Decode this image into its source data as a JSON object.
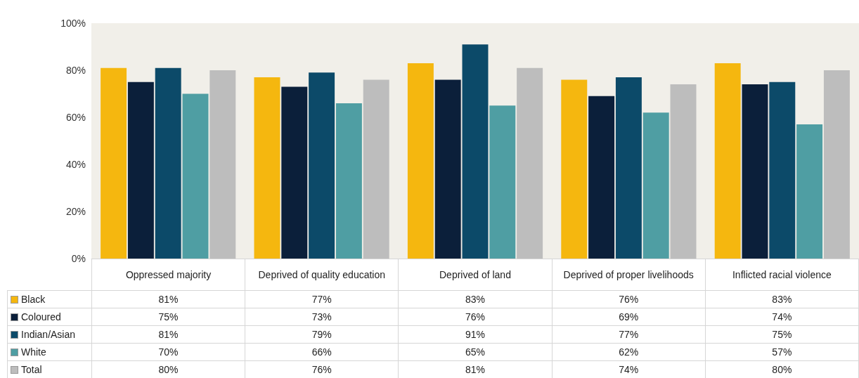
{
  "chart_data": {
    "type": "bar",
    "categories": [
      "Oppressed majority",
      "Deprived of quality education",
      "Deprived of land",
      "Deprived of proper livelihoods",
      "Inflicted racial violence"
    ],
    "series": [
      {
        "name": "Black",
        "color": "#f5b70f",
        "values": [
          81,
          77,
          83,
          76,
          83
        ],
        "value_labels": [
          "81%",
          "77%",
          "83%",
          "76%",
          "83%"
        ]
      },
      {
        "name": "Coloured",
        "color": "#0b1f3a",
        "values": [
          75,
          73,
          76,
          69,
          74
        ],
        "value_labels": [
          "75%",
          "73%",
          "76%",
          "69%",
          "74%"
        ]
      },
      {
        "name": "Indian/Asian",
        "color": "#0c4a69",
        "values": [
          81,
          79,
          91,
          77,
          75
        ],
        "value_labels": [
          "81%",
          "79%",
          "91%",
          "77%",
          "75%"
        ]
      },
      {
        "name": "White",
        "color": "#4f9ea3",
        "values": [
          70,
          66,
          65,
          62,
          57
        ],
        "value_labels": [
          "70%",
          "66%",
          "65%",
          "62%",
          "57%"
        ]
      },
      {
        "name": "Total",
        "color": "#bdbdbd",
        "values": [
          80,
          76,
          81,
          74,
          80
        ],
        "value_labels": [
          "80%",
          "76%",
          "81%",
          "74%",
          "80%"
        ]
      }
    ],
    "ylim": [
      0,
      100
    ],
    "yticks": [
      {
        "value": 0,
        "label": "0%"
      },
      {
        "value": 20,
        "label": "20%"
      },
      {
        "value": 40,
        "label": "40%"
      },
      {
        "value": 60,
        "label": "60%"
      },
      {
        "value": 80,
        "label": "80%"
      },
      {
        "value": 100,
        "label": "100%"
      }
    ],
    "grid": false,
    "legend": "bottom left"
  }
}
